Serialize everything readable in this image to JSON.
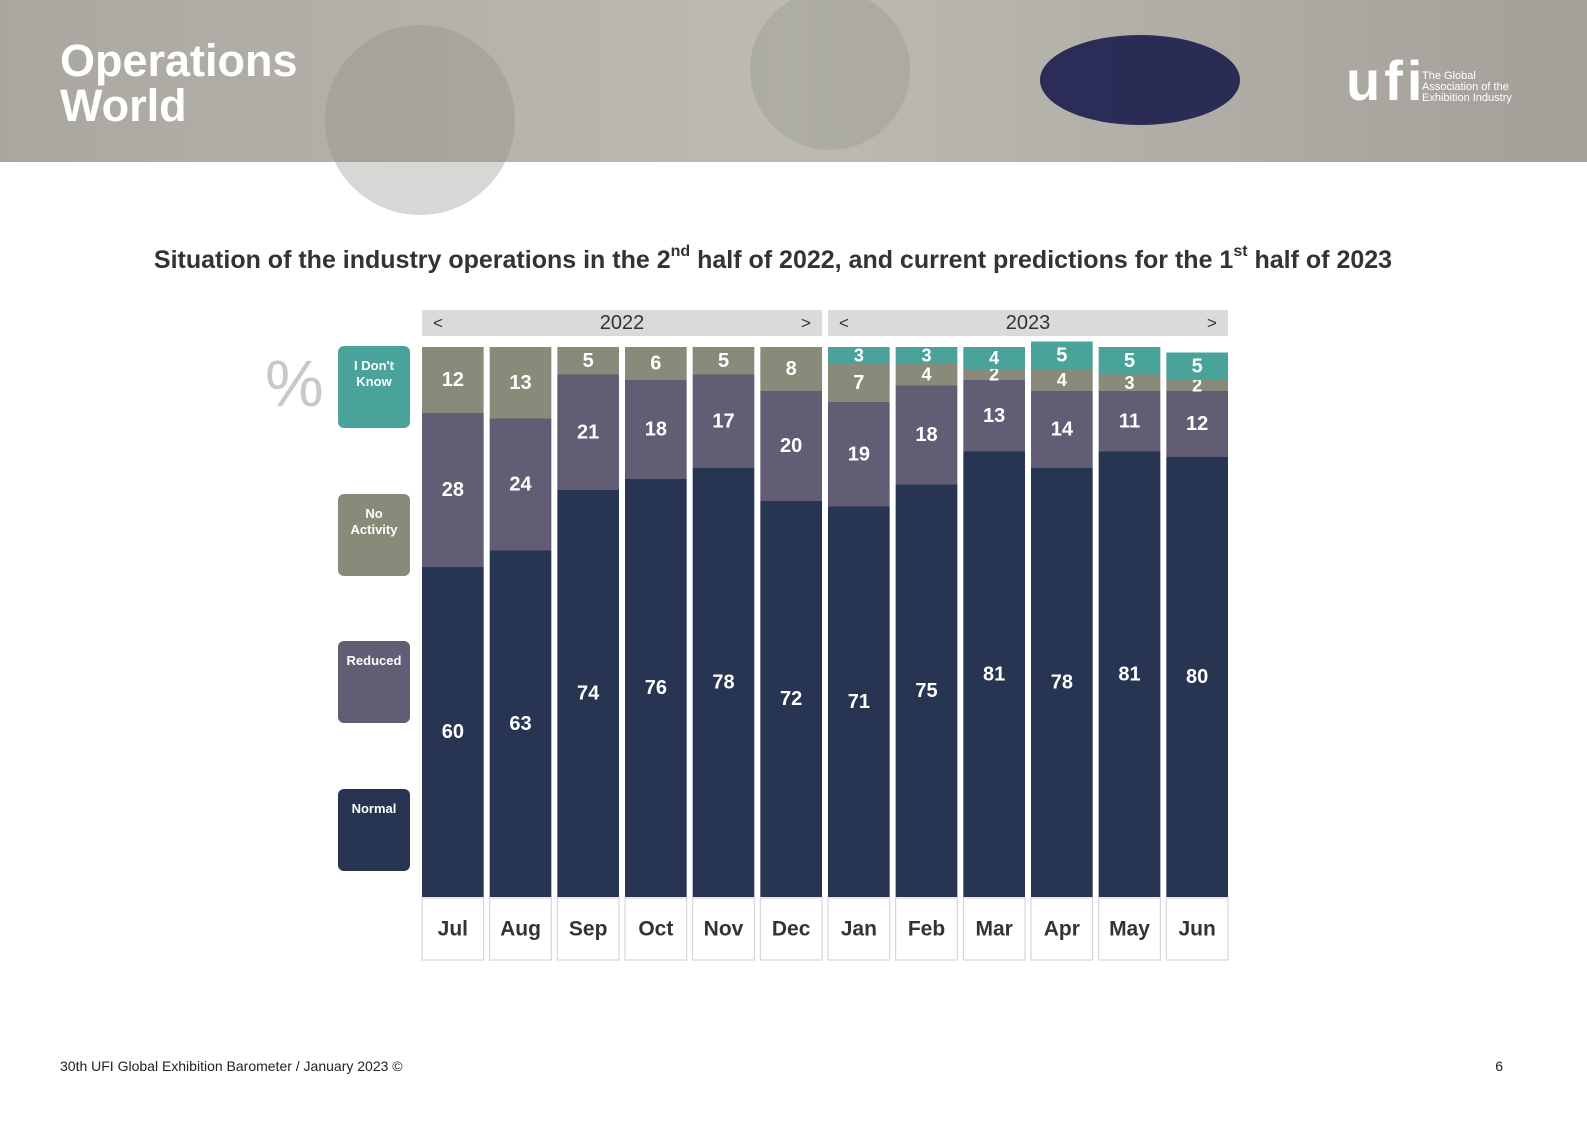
{
  "header": {
    "title": "Operations World",
    "logo": "ufi",
    "tagline": "The Global Association of the Exhibition Industry"
  },
  "chart_data": {
    "type": "bar",
    "stacked": true,
    "title_parts": [
      "Situation of the industry operations in the 2",
      "nd",
      " half of 2022, and current predictions for the 1",
      "st",
      " half of 2023"
    ],
    "unit": "%",
    "year_groups": [
      {
        "label": "2022",
        "prev": "<",
        "next": ">"
      },
      {
        "label": "2023",
        "prev": "<",
        "next": ">"
      }
    ],
    "categories": [
      "Jul",
      "Aug",
      "Sep",
      "Oct",
      "Nov",
      "Dec",
      "Jan",
      "Feb",
      "Mar",
      "Apr",
      "May",
      "Jun"
    ],
    "series": [
      {
        "name": "Normal",
        "color": "#273452",
        "values": [
          60,
          63,
          74,
          76,
          78,
          72,
          71,
          75,
          81,
          78,
          81,
          80
        ]
      },
      {
        "name": "Reduced",
        "color": "#625c75",
        "values": [
          28,
          24,
          21,
          18,
          17,
          20,
          19,
          18,
          13,
          14,
          11,
          12
        ]
      },
      {
        "name": "No Activity",
        "color": "#8a8a7a",
        "values": [
          12,
          13,
          5,
          6,
          5,
          8,
          7,
          4,
          2,
          4,
          3,
          2
        ]
      },
      {
        "name": "I Don't Know",
        "color": "#4aa39a",
        "values": [
          null,
          null,
          null,
          null,
          null,
          null,
          3,
          3,
          4,
          5,
          5,
          5
        ]
      }
    ],
    "ylim": [
      0,
      100
    ]
  },
  "footer": {
    "text": "30th UFI Global Exhibition Barometer / January 2023 ©",
    "page": "6"
  }
}
